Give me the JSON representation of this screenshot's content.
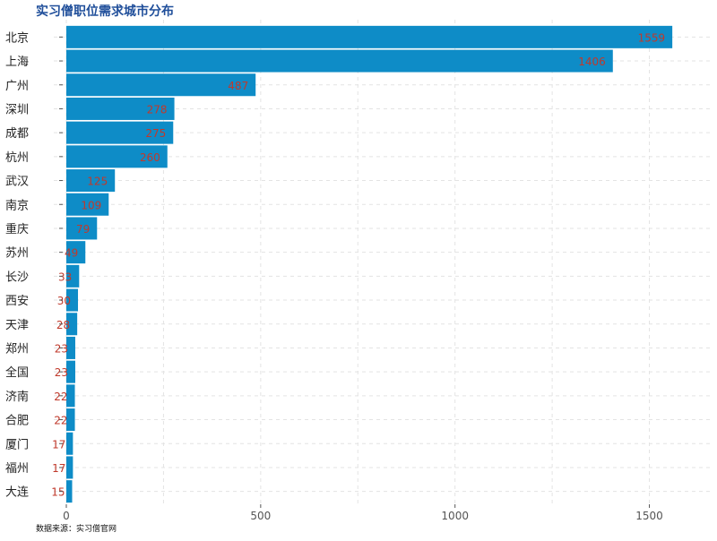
{
  "chart_data": {
    "type": "bar",
    "orientation": "horizontal",
    "title": "实习僧职位需求城市分布",
    "caption": "数据来源：实习僧官网",
    "categories": [
      "北京",
      "上海",
      "广州",
      "深圳",
      "成都",
      "杭州",
      "武汉",
      "南京",
      "重庆",
      "苏州",
      "长沙",
      "西安",
      "天津",
      "郑州",
      "全国",
      "济南",
      "合肥",
      "厦门",
      "福州",
      "大连"
    ],
    "values": [
      1559,
      1406,
      487,
      278,
      275,
      260,
      125,
      109,
      79,
      49,
      33,
      30,
      28,
      23,
      23,
      22,
      22,
      17,
      17,
      15
    ],
    "xlim": [
      0,
      1560
    ],
    "xticks": [
      0,
      500,
      1000,
      1500
    ],
    "xlabel": "",
    "ylabel": "",
    "grid": true,
    "legend": "none",
    "bar_color": "#0e8cc7",
    "value_label_color": "#c0392b",
    "title_color": "#1f4e9a"
  }
}
